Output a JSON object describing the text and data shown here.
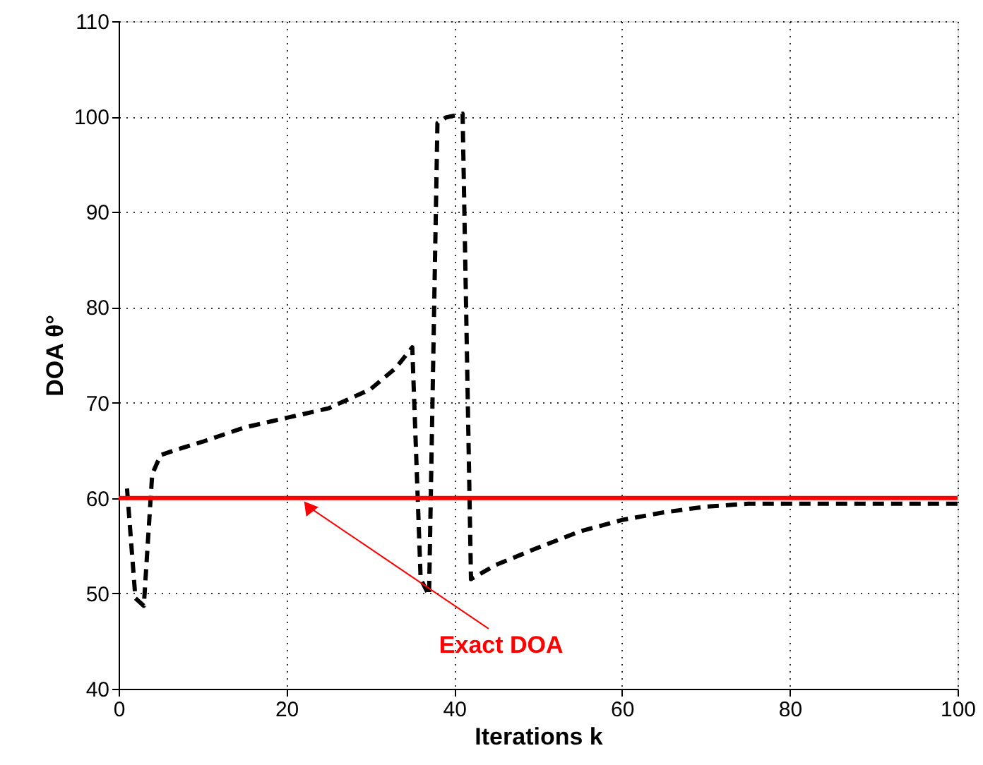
{
  "chart_data": {
    "type": "line",
    "xlabel": "Iterations k",
    "ylabel": "DOA  θ°",
    "series": [
      {
        "color": "#000000",
        "line_style": "dashed",
        "x": [
          1,
          2,
          3,
          4,
          5,
          7,
          10,
          15,
          20,
          25,
          30,
          33,
          35,
          36,
          37,
          38,
          39,
          41,
          42,
          45,
          50,
          55,
          60,
          65,
          70,
          75,
          100
        ],
        "values": [
          61,
          49.5,
          48.7,
          62.5,
          64.5,
          65.1,
          65.9,
          67.4,
          68.4,
          69.4,
          71.4,
          73.6,
          75.8,
          51.5,
          49.8,
          99.3,
          99.9,
          100.3,
          51.5,
          53,
          54.8,
          56.5,
          57.7,
          58.5,
          59.1,
          59.4,
          59.4
        ]
      }
    ],
    "xlim": [
      0,
      100
    ],
    "xticks": [
      0,
      20,
      40,
      60,
      80,
      100
    ],
    "ylim": [
      40,
      110
    ],
    "yticks": [
      40,
      50,
      60,
      70,
      80,
      90,
      100,
      110
    ],
    "grid": true,
    "marker": "none",
    "ref_lines": [
      {
        "axis": "y",
        "value": 60,
        "color": "#ff0000",
        "line_style": "solid"
      }
    ],
    "annotations": [
      {
        "text": "Exact DOA",
        "x": 22.6,
        "y": 60
      }
    ]
  }
}
